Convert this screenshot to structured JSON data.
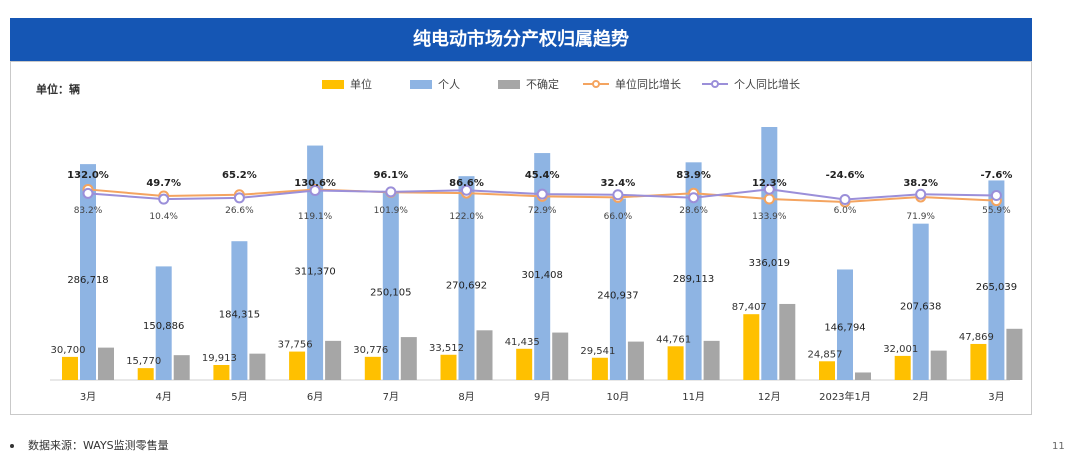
{
  "page": {
    "title": "纯电动市场分产权归属趋势",
    "unit_label": "单位：辆",
    "source": "数据来源：WAYS监测零售量",
    "page_number": "11"
  },
  "colors": {
    "banner": "#1556b4",
    "unit": "#ffc000",
    "personal": "#8eb4e3",
    "uncertain": "#a6a6a6",
    "unit_yoy": "#f4a460",
    "personal_yoy": "#9b8fd9"
  },
  "chart_data": {
    "type": "bar",
    "title": "纯电动市场分产权归属趋势",
    "ylabel": "单位：辆",
    "xlabel": "",
    "ylim": [
      0,
      340000
    ],
    "y2lim": [
      -200,
      300
    ],
    "categories": [
      "3月",
      "4月",
      "5月",
      "6月",
      "7月",
      "8月",
      "9月",
      "10月",
      "11月",
      "12月",
      "2023年1月",
      "2月",
      "3月"
    ],
    "legend_position": "top",
    "series": [
      {
        "name": "单位",
        "kind": "bar",
        "values": [
          30700,
          15770,
          19913,
          37756,
          30776,
          33512,
          41435,
          29541,
          44761,
          87407,
          24857,
          32001,
          47869
        ],
        "labels": [
          "30,700",
          "15,770",
          "19,913",
          "37,756",
          "30,776",
          "33,512",
          "41,435",
          "29,541",
          "44,761",
          "87,407",
          "24,857",
          "32,001",
          "47,869"
        ]
      },
      {
        "name": "个人",
        "kind": "bar",
        "values": [
          286718,
          150886,
          184315,
          311370,
          250105,
          270692,
          301408,
          240937,
          289113,
          336019,
          146794,
          207638,
          265039
        ],
        "labels": [
          "286,718",
          "150,886",
          "184,315",
          "311,370",
          "250,105",
          "270,692",
          "301,408",
          "240,937",
          "289,113",
          "336,019",
          "146,794",
          "207,638",
          "265,039"
        ]
      },
      {
        "name": "不确定",
        "kind": "bar",
        "values": [
          43000,
          33000,
          35000,
          52000,
          57000,
          66000,
          63000,
          51000,
          52000,
          101000,
          10000,
          39000,
          68000
        ],
        "labels": []
      },
      {
        "name": "单位同比增长",
        "kind": "line",
        "values": [
          132.0,
          49.7,
          65.2,
          130.6,
          96.1,
          86.6,
          45.4,
          32.4,
          83.9,
          12.3,
          -24.6,
          38.2,
          -7.6
        ],
        "labels": [
          "132.0%",
          "49.7%",
          "65.2%",
          "130.6%",
          "96.1%",
          "86.6%",
          "45.4%",
          "32.4%",
          "83.9%",
          "12.3%",
          "-24.6%",
          "38.2%",
          "-7.6%"
        ]
      },
      {
        "name": "个人同比增长",
        "kind": "line",
        "values": [
          83.2,
          10.4,
          26.6,
          119.1,
          101.9,
          122.0,
          72.9,
          66.0,
          28.6,
          133.9,
          6.0,
          71.9,
          55.9
        ],
        "labels": [
          "83.2%",
          "10.4%",
          "26.6%",
          "119.1%",
          "101.9%",
          "122.0%",
          "72.9%",
          "66.0%",
          "28.6%",
          "133.9%",
          "6.0%",
          "71.9%",
          "55.9%"
        ]
      }
    ]
  }
}
